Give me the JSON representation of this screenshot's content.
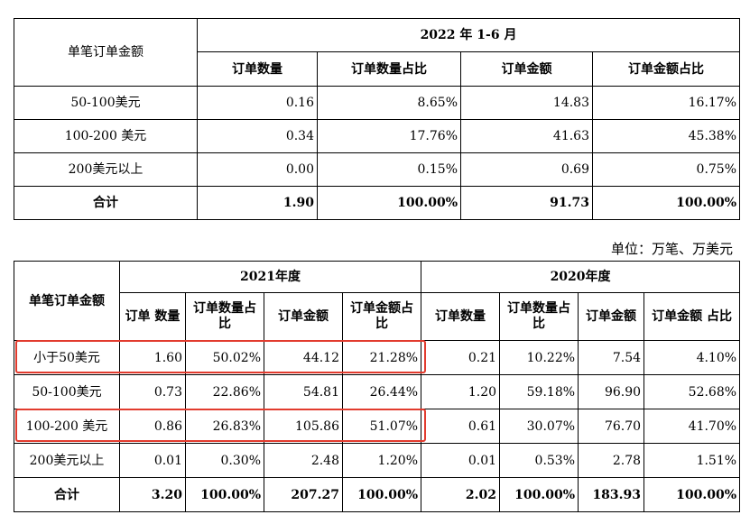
{
  "table1": {
    "col_label": "单笔订单金额",
    "period": "2022 年 1-6 月",
    "headers": [
      "订单数量",
      "订单数量占比",
      "订单金额",
      "订单金额占比"
    ],
    "rows": [
      {
        "label": "50-100美元",
        "values": [
          "0.16",
          "8.65%",
          "14.83",
          "16.17%"
        ]
      },
      {
        "label": "100-200 美元",
        "values": [
          "0.34",
          "17.76%",
          "41.63",
          "45.38%"
        ]
      },
      {
        "label": "200美元以上",
        "values": [
          "0.00",
          "0.15%",
          "0.69",
          "0.75%"
        ]
      },
      {
        "label": "合计",
        "values": [
          "1.90",
          "100.00%",
          "91.73",
          "100.00%"
        ]
      }
    ]
  },
  "unit_note": "单位：万笔、万美元",
  "table2": {
    "col_label": "单笔订单金额",
    "periods": [
      "2021年度",
      "2020年度"
    ],
    "headers_2021": [
      "订单 数量",
      "订单数量占比",
      "订单金额",
      "订单金额占比"
    ],
    "headers_2020": [
      "订单数量",
      "订单数量占比",
      "订单金额",
      "订单金额 占比"
    ],
    "rows": [
      {
        "label": "小于50美元",
        "values": [
          "1.60",
          "50.02%",
          "44.12",
          "21.28%",
          "0.21",
          "10.22%",
          "7.54",
          "4.10%"
        ]
      },
      {
        "label": "50-100美元",
        "values": [
          "0.73",
          "22.86%",
          "54.81",
          "26.44%",
          "1.20",
          "59.18%",
          "96.90",
          "52.68%"
        ]
      },
      {
        "label": "100-200 美元",
        "values": [
          "0.86",
          "26.83%",
          "105.86",
          "51.07%",
          "0.61",
          "30.07%",
          "76.70",
          "41.70%"
        ]
      },
      {
        "label": "200美元以上",
        "values": [
          "0.01",
          "0.30%",
          "2.48",
          "1.20%",
          "0.01",
          "0.53%",
          "2.78",
          "1.51%"
        ]
      },
      {
        "label": "合计",
        "values": [
          "3.20",
          "100.00%",
          "207.27",
          "100.00%",
          "2.02",
          "100.00%",
          "183.93",
          "100.00%"
        ]
      }
    ]
  },
  "highlight_color": "#e23b2e"
}
